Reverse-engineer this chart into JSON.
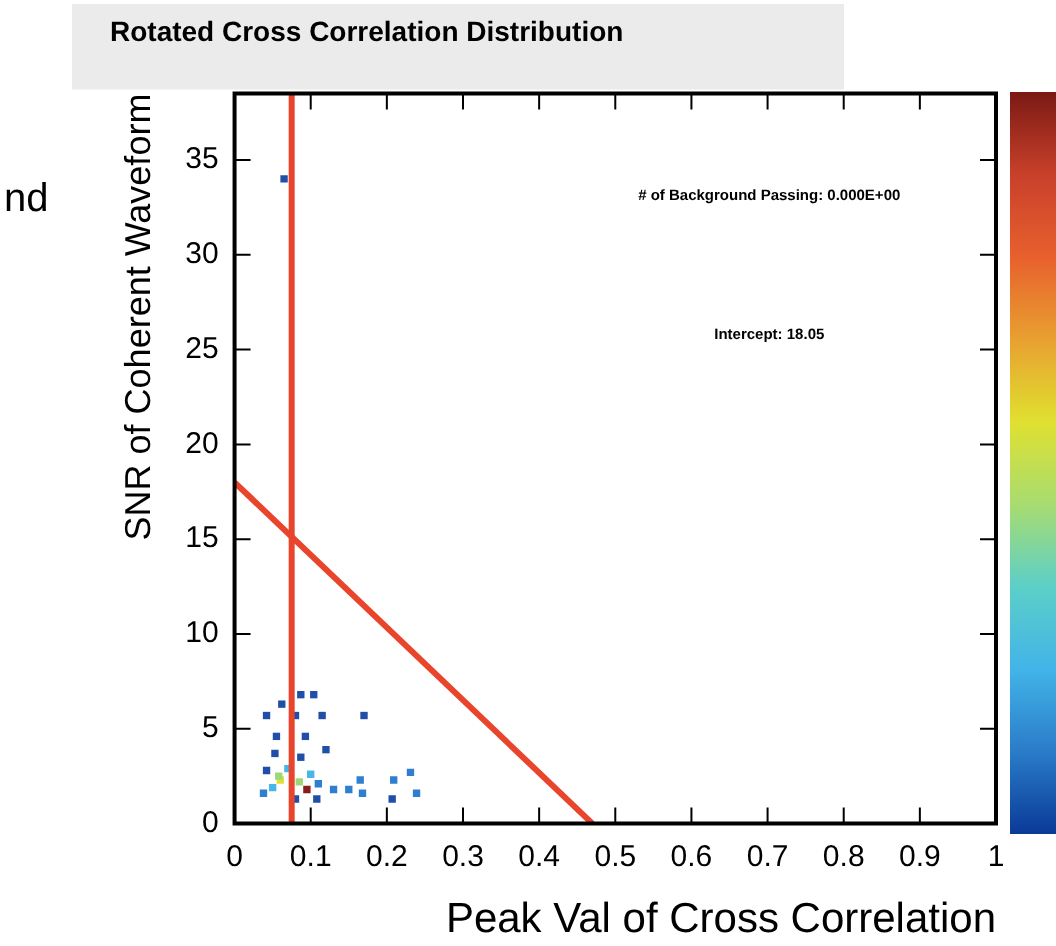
{
  "chart_data": {
    "type": "scatter",
    "title": "Rotated Cross Correlation Distribution",
    "xlabel": "Peak Val of Cross Correlation",
    "ylabel": "SNR of Coherent Waveform",
    "annotations": [
      "# of Background Passing: 0.000E+00",
      "Intercept: 18.05",
      "nd"
    ],
    "xlim": [
      0,
      1
    ],
    "xticks": [
      0,
      0.1,
      0.2,
      0.3,
      0.4,
      0.5,
      0.6,
      0.7,
      0.8,
      0.9,
      1
    ],
    "ylim": [
      0,
      38.5
    ],
    "yticks": [
      0,
      5,
      10,
      15,
      20,
      25,
      30,
      35
    ],
    "grid": false,
    "legend": false,
    "marker": "square",
    "ref_lines": [
      {
        "axis": "x",
        "value": 0.075,
        "color": "#e8452c"
      }
    ],
    "series": [
      {
        "x": [
          0.065,
          0.104,
          0.087,
          0.062,
          0.042,
          0.17,
          0.115,
          0.08,
          0.055,
          0.093,
          0.12,
          0.053,
          0.087,
          0.042,
          0.108,
          0.207,
          0.08
        ],
        "values": [
          34,
          6.8,
          6.8,
          6.3,
          5.7,
          5.7,
          5.7,
          5.7,
          4.6,
          4.6,
          3.9,
          3.7,
          3.5,
          2.8,
          1.3,
          1.3,
          1.3
        ],
        "color": "#1f4fa8"
      },
      {
        "x": [
          0.11,
          0.13,
          0.15,
          0.165,
          0.168,
          0.209,
          0.231,
          0.239,
          0.038
        ],
        "values": [
          2.1,
          1.8,
          1.8,
          2.3,
          1.6,
          2.3,
          2.7,
          1.6,
          1.6
        ],
        "color": "#2f7fd0"
      },
      {
        "x": [
          0.07,
          0.1,
          0.05
        ],
        "values": [
          2.9,
          2.6,
          1.9
        ],
        "color": "#4ab6e8"
      },
      {
        "x": [
          0.058,
          0.085
        ],
        "values": [
          2.5,
          2.2
        ],
        "color": "#9bd87a"
      },
      {
        "x": [
          0.06
        ],
        "values": [
          2.3
        ],
        "color": "#e0e033"
      },
      {
        "x": [
          0.095
        ],
        "values": [
          1.8
        ],
        "color": "#8b1a1a"
      },
      {
        "type": "line",
        "x": [
          0,
          0.47
        ],
        "values": [
          18,
          0
        ],
        "color": "#e8452c",
        "marker": "none"
      }
    ]
  }
}
